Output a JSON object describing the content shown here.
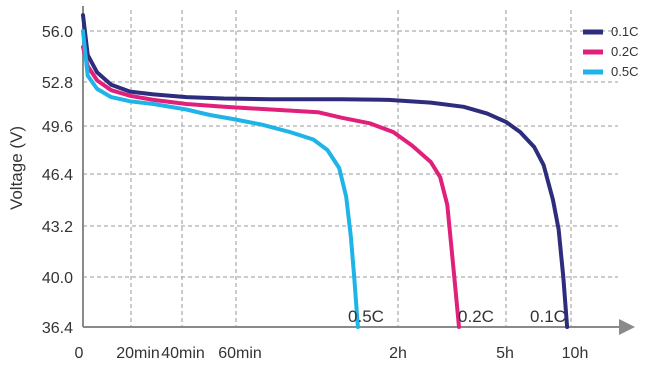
{
  "chart_data": {
    "type": "line",
    "ylabel": "Voltage (V)",
    "ylim": [
      36.4,
      56.8
    ],
    "yticks": [
      "56.0",
      "52.8",
      "49.6",
      "46.4",
      "43.2",
      "40.0",
      "36.4"
    ],
    "x_tick_labels": [
      "0",
      "20min",
      "40min",
      "60min",
      "2h",
      "5h",
      "10h"
    ],
    "grid": "dashed",
    "legend_position": "top-right",
    "series": [
      {
        "name": "0.1C",
        "color": "#2e2c7c",
        "end_label": "0.1C",
        "points": [
          [
            0,
            57.0
          ],
          [
            0.1,
            54.5
          ],
          [
            0.3,
            53.4
          ],
          [
            0.6,
            52.6
          ],
          [
            1.0,
            52.1
          ],
          [
            1.5,
            51.9
          ],
          [
            2.2,
            51.7
          ],
          [
            3.0,
            51.6
          ],
          [
            4.0,
            51.55
          ],
          [
            5.5,
            51.55
          ],
          [
            6.5,
            51.5
          ],
          [
            7.4,
            51.3
          ],
          [
            8.1,
            51.0
          ],
          [
            8.6,
            50.5
          ],
          [
            9.0,
            49.9
          ],
          [
            9.3,
            49.2
          ],
          [
            9.6,
            48.2
          ],
          [
            9.8,
            47.0
          ],
          [
            10.0,
            44.8
          ],
          [
            10.12,
            43.0
          ],
          [
            10.22,
            40.0
          ],
          [
            10.3,
            36.4
          ]
        ]
      },
      {
        "name": "0.2C",
        "color": "#e0207a",
        "end_label": "0.2C",
        "points": [
          [
            0,
            55.0
          ],
          [
            0.1,
            53.8
          ],
          [
            0.3,
            52.9
          ],
          [
            0.6,
            52.2
          ],
          [
            1.0,
            51.8
          ],
          [
            1.5,
            51.5
          ],
          [
            2.2,
            51.2
          ],
          [
            3.0,
            51.0
          ],
          [
            4.0,
            50.8
          ],
          [
            5.0,
            50.6
          ],
          [
            5.5,
            50.2
          ],
          [
            6.1,
            49.8
          ],
          [
            6.6,
            49.2
          ],
          [
            7.0,
            48.3
          ],
          [
            7.4,
            47.2
          ],
          [
            7.6,
            46.2
          ],
          [
            7.75,
            44.5
          ],
          [
            7.9,
            40.0
          ],
          [
            8.0,
            36.4
          ]
        ]
      },
      {
        "name": "0.5C",
        "color": "#1eb4e8",
        "end_label": "0.5C",
        "points": [
          [
            0,
            56.0
          ],
          [
            0.1,
            53.2
          ],
          [
            0.3,
            52.3
          ],
          [
            0.6,
            51.7
          ],
          [
            1.0,
            51.4
          ],
          [
            1.5,
            51.2
          ],
          [
            2.2,
            50.8
          ],
          [
            2.7,
            50.4
          ],
          [
            3.2,
            50.1
          ],
          [
            3.8,
            49.7
          ],
          [
            4.4,
            49.2
          ],
          [
            4.9,
            48.7
          ],
          [
            5.2,
            48.0
          ],
          [
            5.45,
            46.8
          ],
          [
            5.6,
            45.0
          ],
          [
            5.7,
            42.5
          ],
          [
            5.77,
            40.0
          ],
          [
            5.85,
            36.4
          ]
        ]
      }
    ]
  }
}
